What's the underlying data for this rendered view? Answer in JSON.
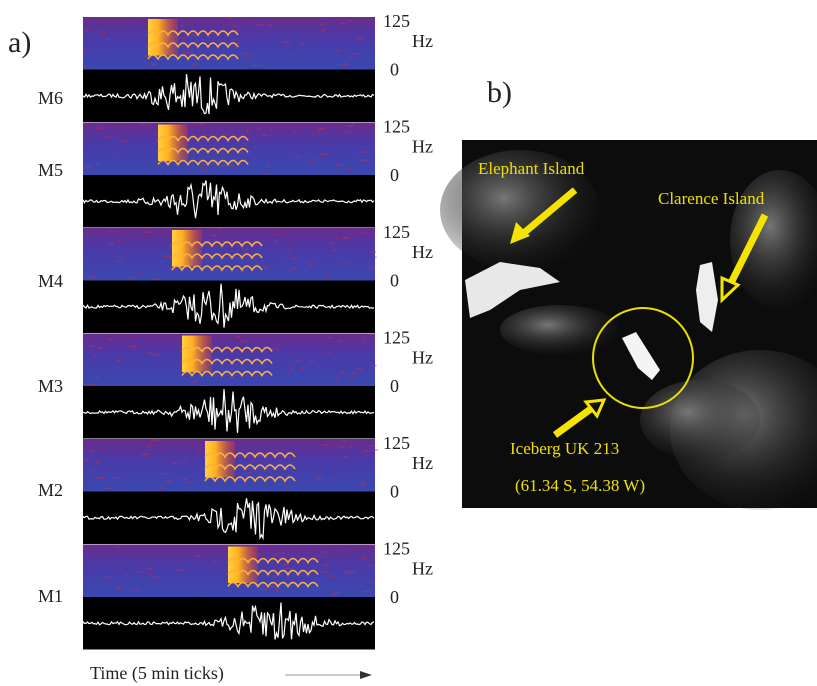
{
  "panel_a": {
    "label": "a)",
    "stations": [
      {
        "name": "M6",
        "tick_high": "125",
        "unit": "Hz",
        "tick_low": "0"
      },
      {
        "name": "M5",
        "tick_high": "125",
        "unit": "Hz",
        "tick_low": "0"
      },
      {
        "name": "M4",
        "tick_high": "125",
        "unit": "Hz",
        "tick_low": "0"
      },
      {
        "name": "M3",
        "tick_high": "125",
        "unit": "Hz",
        "tick_low": "0"
      },
      {
        "name": "M2",
        "tick_high": "125",
        "unit": "Hz",
        "tick_low": "0"
      },
      {
        "name": "M1",
        "tick_high": "125",
        "unit": "Hz",
        "tick_low": "0"
      }
    ],
    "time_label": "Time (5 min ticks)"
  },
  "panel_b": {
    "label": "b)",
    "elephant": "Elephant Island",
    "clarence": "Clarence Island",
    "iceberg": "Iceberg UK 213",
    "position": "(61.34 S, 54.38 W)"
  }
}
